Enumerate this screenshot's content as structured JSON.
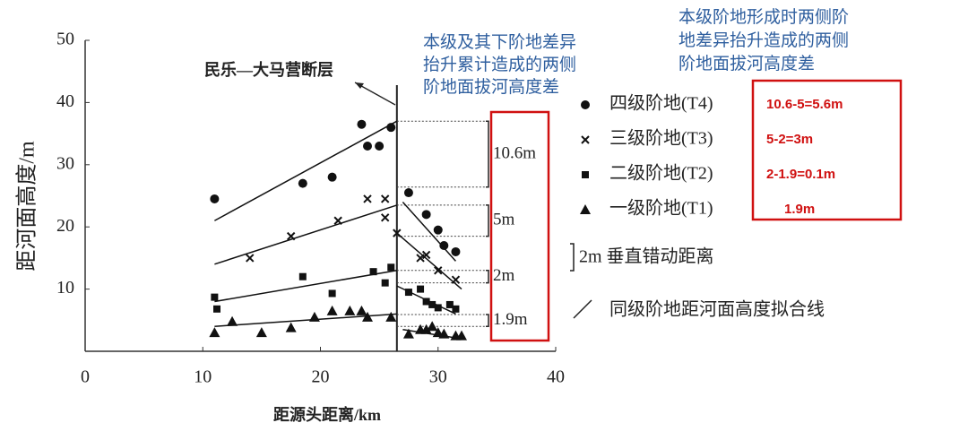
{
  "chart_data": {
    "type": "scatter",
    "xlabel": "距源头距离/km",
    "ylabel": "距河面高度/m",
    "xlim": [
      0,
      40
    ],
    "xticks": [
      0,
      10,
      20,
      30,
      40
    ],
    "ylim": [
      0,
      50
    ],
    "yticks": [
      10,
      20,
      30,
      40,
      50
    ],
    "fault_label": "民乐—大马营断层",
    "fault_x": 26.5,
    "series": [
      {
        "name": "四级阶地(T4)",
        "note": "10.6-5=5.6m",
        "marker": "circle",
        "color": "#111111",
        "x": [
          11,
          18.5,
          21,
          23.5,
          24,
          25,
          26,
          27.5,
          29,
          30,
          30.5,
          31.5
        ],
        "values": [
          24.5,
          27,
          28,
          36.5,
          33,
          33,
          36,
          25.5,
          22,
          19.5,
          17,
          16
        ],
        "fit_x": [
          [
            11,
            26.5
          ],
          [
            27,
            31.5
          ]
        ],
        "fit_y": [
          [
            21,
            37
          ],
          [
            24,
            14.5
          ]
        ]
      },
      {
        "name": "三级阶地(T3)",
        "note": "5-2=3m",
        "marker": "cross",
        "color": "#111111",
        "x": [
          14,
          17.5,
          21.5,
          24,
          25.5,
          25.5,
          26.5,
          28.5,
          29,
          30,
          31.5
        ],
        "values": [
          15,
          18.5,
          21,
          24.5,
          24.5,
          21.5,
          19,
          15,
          15.5,
          13,
          11.5
        ],
        "fit_x": [
          [
            11,
            26.5
          ],
          [
            26.5,
            32
          ]
        ],
        "fit_y": [
          [
            14,
            23.5
          ],
          [
            19,
            10
          ]
        ]
      },
      {
        "name": "二级阶地(T2)",
        "note": "2-1.9=0.1m",
        "marker": "square",
        "color": "#111111",
        "x": [
          11,
          11.2,
          18.5,
          21,
          24.5,
          25.5,
          26,
          27.5,
          28.5,
          29,
          29.5,
          30,
          31,
          31.5
        ],
        "values": [
          8.7,
          6.8,
          12,
          9.3,
          12.8,
          11,
          13.5,
          9.5,
          10,
          8,
          7.5,
          7,
          7.5,
          6.8
        ],
        "fit_x": [
          [
            11,
            26.5
          ],
          [
            26.5,
            31.5
          ]
        ],
        "fit_y": [
          [
            8,
            13
          ],
          [
            10.5,
            6
          ]
        ]
      },
      {
        "name": "一级阶地(T1)",
        "note": "1.9m",
        "marker": "triangle",
        "color": "#111111",
        "x": [
          11,
          12.5,
          15,
          17.5,
          19.5,
          21,
          22.5,
          23.5,
          24,
          26,
          27.5,
          28.5,
          29,
          29.5,
          30,
          30.5,
          31.5,
          32
        ],
        "values": [
          3,
          4.8,
          3,
          3.8,
          5.5,
          6.5,
          6.5,
          6.5,
          5.5,
          5.5,
          2.8,
          3.5,
          3.5,
          4,
          3,
          2.8,
          2.5,
          2.5
        ],
        "fit_x": [
          [
            11,
            26.5
          ],
          [
            27,
            32
          ]
        ],
        "fit_y": [
          [
            4,
            6
          ],
          [
            3.5,
            2
          ]
        ]
      }
    ],
    "offsets": [
      {
        "label": "10.6m",
        "top": 37,
        "bottom": 26.4
      },
      {
        "label": "5m",
        "top": 23.5,
        "bottom": 18.5
      },
      {
        "label": "2m",
        "top": 13,
        "bottom": 11
      },
      {
        "label": "1.9m",
        "top": 5.9,
        "bottom": 4
      }
    ],
    "legend_extra": [
      "2m 垂直错动距离",
      "同级阶地距河面高度拟合线"
    ],
    "annotation_left": [
      "本级及其下阶地差异",
      "抬升累计造成的两侧",
      "阶地面拔河高度差"
    ],
    "annotation_right": [
      "本级阶地形成时两侧阶",
      "地差异抬升造成的两侧",
      "阶地面拔河高度差"
    ]
  }
}
